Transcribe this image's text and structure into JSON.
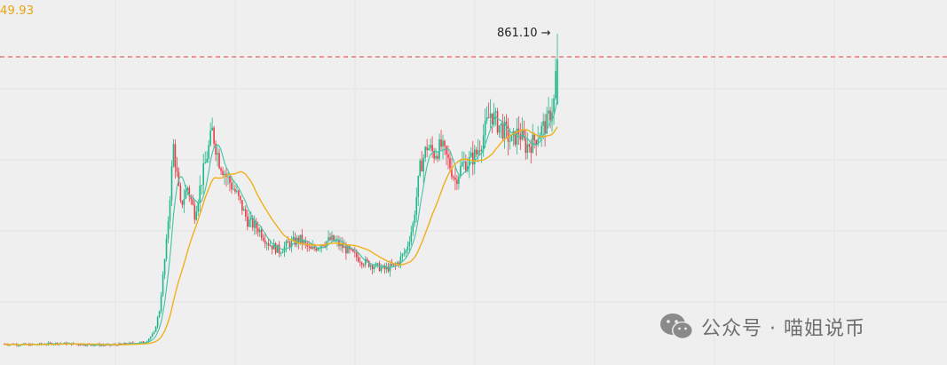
{
  "indicator_value": "49.93",
  "high_marker": {
    "price_label": "861.10",
    "arrow": "→"
  },
  "watermark": {
    "icon": "wechat-icon",
    "text": "公众号 · 喵姐说币"
  },
  "colors": {
    "up": "#1fb68a",
    "down": "#e5404a",
    "ma_long": "#f0b01a",
    "ma_short": "#3fc4a6",
    "marker_line": "#e5404a"
  },
  "chart_data": {
    "type": "candlestick",
    "y_max_label": 861.1,
    "reference_line": 861.1,
    "segments": [
      [
        0,
        30
      ],
      [
        15,
        28
      ],
      [
        30,
        32
      ],
      [
        45,
        29
      ],
      [
        60,
        27
      ],
      [
        70,
        31
      ],
      [
        80,
        35
      ],
      [
        85,
        60
      ],
      [
        88,
        120
      ],
      [
        92,
        300
      ],
      [
        96,
        560
      ],
      [
        100,
        400
      ],
      [
        104,
        450
      ],
      [
        108,
        380
      ],
      [
        112,
        470
      ],
      [
        118,
        600
      ],
      [
        122,
        520
      ],
      [
        126,
        480
      ],
      [
        132,
        430
      ],
      [
        138,
        360
      ],
      [
        144,
        340
      ],
      [
        150,
        300
      ],
      [
        156,
        280
      ],
      [
        162,
        300
      ],
      [
        168,
        310
      ],
      [
        174,
        280
      ],
      [
        180,
        300
      ],
      [
        186,
        310
      ],
      [
        192,
        290
      ],
      [
        198,
        270
      ],
      [
        204,
        250
      ],
      [
        210,
        240
      ],
      [
        216,
        230
      ],
      [
        222,
        240
      ],
      [
        228,
        280
      ],
      [
        232,
        350
      ],
      [
        236,
        500
      ],
      [
        240,
        560
      ],
      [
        244,
        540
      ],
      [
        248,
        560
      ],
      [
        252,
        520
      ],
      [
        256,
        470
      ],
      [
        260,
        510
      ],
      [
        264,
        520
      ],
      [
        268,
        540
      ],
      [
        272,
        590
      ],
      [
        276,
        650
      ],
      [
        280,
        620
      ],
      [
        284,
        600
      ],
      [
        288,
        570
      ],
      [
        292,
        600
      ],
      [
        296,
        560
      ],
      [
        300,
        570
      ],
      [
        304,
        600
      ],
      [
        308,
        620
      ],
      [
        312,
        680
      ],
      [
        314,
        820
      ]
    ],
    "n_candles": 315,
    "ma_short_period": 7,
    "ma_long_period": 25
  }
}
